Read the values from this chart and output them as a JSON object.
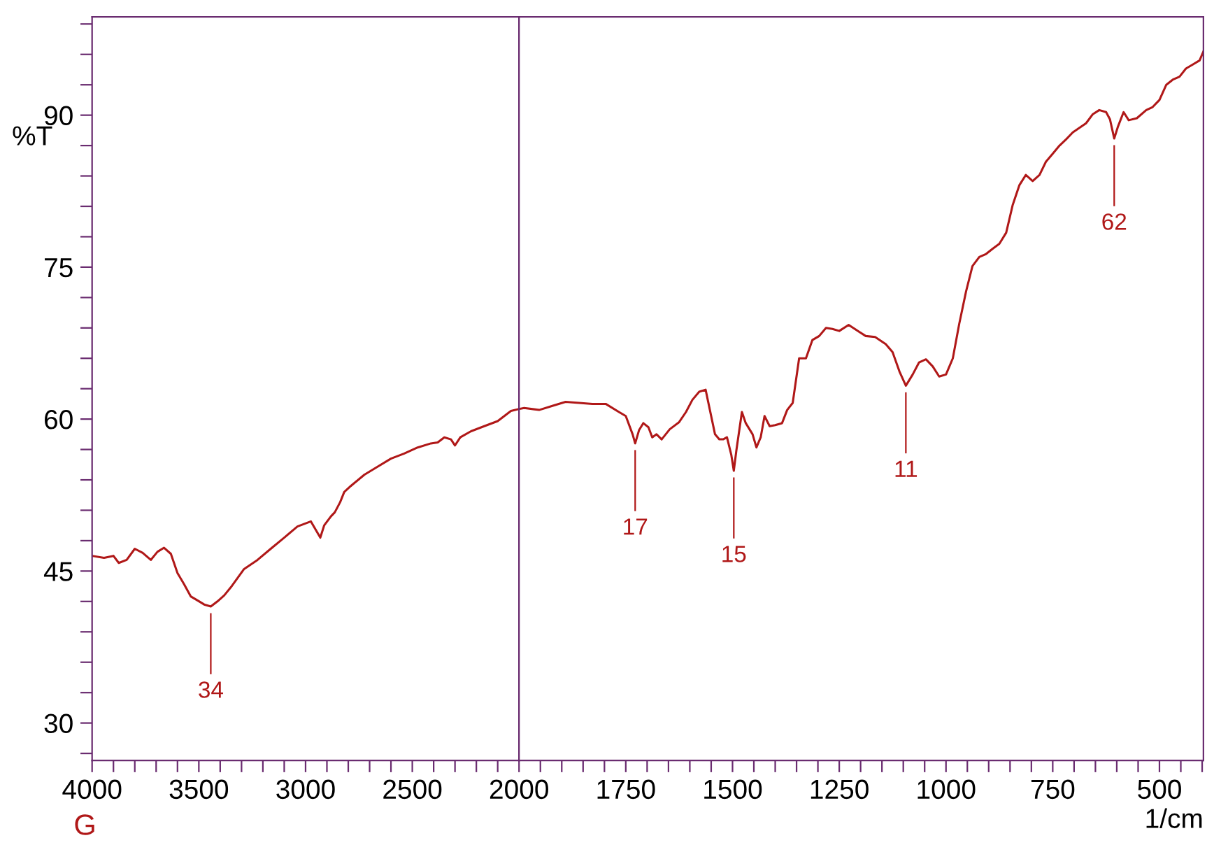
{
  "chart_data": [
    {
      "type": "line",
      "ylabel": "%T",
      "x": [
        4000,
        3944,
        3900,
        3875,
        3838,
        3800,
        3763,
        3725,
        3694,
        3663,
        3631,
        3600,
        3569,
        3538,
        3506,
        3475,
        3444,
        3413,
        3381,
        3350,
        3288,
        3225,
        3163,
        3100,
        3038,
        2975,
        2931,
        2913,
        2881,
        2863,
        2838,
        2819,
        2788,
        2725,
        2663,
        2600,
        2538,
        2475,
        2413,
        2381,
        2350,
        2319,
        2300,
        2275,
        2225,
        2163,
        2100,
        2038,
        2000
      ],
      "series": [
        {
          "color": "#b01818",
          "values": [
            46.5,
            46.3,
            46.5,
            45.8,
            46.1,
            47.2,
            46.8,
            46.1,
            46.9,
            47.3,
            46.7,
            44.8,
            43.7,
            42.5,
            42.1,
            41.7,
            41.5,
            42.0,
            42.6,
            43.4,
            45.2,
            46.1,
            47.2,
            48.3,
            49.4,
            49.9,
            48.3,
            49.5,
            50.4,
            50.8,
            51.8,
            52.8,
            53.4,
            54.5,
            55.3,
            56.1,
            56.6,
            57.2,
            57.6,
            57.7,
            58.2,
            58.0,
            57.4,
            58.2,
            58.8,
            59.3,
            59.8,
            60.8,
            61.0
          ]
        }
      ],
      "xlim": [
        4000,
        2000
      ],
      "ylim": [
        26.3,
        99.7
      ],
      "xticks": [
        4000,
        {
          "value": 3900,
          "label": null
        },
        {
          "value": 3800,
          "label": null
        },
        {
          "value": 3700,
          "label": null
        },
        {
          "value": 3600,
          "label": null
        },
        3500,
        {
          "value": 3400,
          "label": null
        },
        {
          "value": 3300,
          "label": null
        },
        {
          "value": 3200,
          "label": null
        },
        {
          "value": 3100,
          "label": null
        },
        3000,
        {
          "value": 2900,
          "label": null
        },
        {
          "value": 2800,
          "label": null
        },
        {
          "value": 2700,
          "label": null
        },
        {
          "value": 2600,
          "label": null
        },
        2500,
        {
          "value": 2400,
          "label": null
        },
        {
          "value": 2300,
          "label": null
        },
        {
          "value": 2200,
          "label": null
        },
        {
          "value": 2100,
          "label": null
        }
      ],
      "yticks": [
        {
          "value": 27,
          "label": null
        },
        30,
        {
          "value": 33,
          "label": null
        },
        {
          "value": 36,
          "label": null
        },
        {
          "value": 39,
          "label": null
        },
        {
          "value": 42,
          "label": null
        },
        45,
        {
          "value": 48,
          "label": null
        },
        {
          "value": 51,
          "label": null
        },
        {
          "value": 54,
          "label": null
        },
        {
          "value": 57,
          "label": null
        },
        60,
        {
          "value": 63,
          "label": null
        },
        {
          "value": 66,
          "label": null
        },
        {
          "value": 69,
          "label": null
        },
        {
          "value": 72,
          "label": null
        },
        75,
        {
          "value": 78,
          "label": null
        },
        {
          "value": 81,
          "label": null
        },
        {
          "value": 84,
          "label": null
        },
        {
          "value": 87,
          "label": null
        },
        90,
        {
          "value": 93,
          "label": null
        },
        {
          "value": 96,
          "label": null
        },
        {
          "value": 99,
          "label": null
        }
      ],
      "grid": false,
      "marker": "none",
      "line_style": "solid",
      "annotations": [
        {
          "text": "34",
          "x": 3444,
          "y": 41.5
        },
        "G"
      ]
    },
    {
      "type": "line",
      "xlabel": "1/cm",
      "tick_labels": "x",
      "x": [
        2000,
        1988,
        1953,
        1922,
        1891,
        1859,
        1828,
        1797,
        1766,
        1750,
        1734,
        1728,
        1719,
        1709,
        1697,
        1688,
        1678,
        1666,
        1647,
        1625,
        1609,
        1594,
        1578,
        1563,
        1553,
        1541,
        1531,
        1522,
        1513,
        1503,
        1497,
        1491,
        1478,
        1469,
        1453,
        1444,
        1434,
        1425,
        1413,
        1400,
        1384,
        1372,
        1359,
        1344,
        1328,
        1313,
        1297,
        1281,
        1266,
        1250,
        1228,
        1203,
        1188,
        1166,
        1141,
        1125,
        1109,
        1094,
        1078,
        1063,
        1047,
        1031,
        1016,
        1000,
        984,
        969,
        953,
        938,
        922,
        906,
        891,
        875,
        859,
        844,
        828,
        813,
        797,
        781,
        766,
        750,
        734,
        719,
        703,
        672,
        656,
        641,
        625,
        616,
        606,
        597,
        584,
        572,
        553,
        531,
        516,
        500,
        484,
        469,
        453,
        438,
        422,
        406,
        397
      ],
      "series": [
        {
          "color": "#b01818",
          "values": [
            61.0,
            61.1,
            60.9,
            61.3,
            61.7,
            61.6,
            61.5,
            61.5,
            60.7,
            60.3,
            58.5,
            57.6,
            58.9,
            59.6,
            59.2,
            58.2,
            58.5,
            58.0,
            59.0,
            59.7,
            60.7,
            61.9,
            62.7,
            62.9,
            60.9,
            58.5,
            58.0,
            58.0,
            58.2,
            56.5,
            54.9,
            56.9,
            60.7,
            59.6,
            58.5,
            57.2,
            58.2,
            60.3,
            59.3,
            59.4,
            59.6,
            60.9,
            61.6,
            66.0,
            66.0,
            67.8,
            68.2,
            69.0,
            68.9,
            68.7,
            69.3,
            68.6,
            68.2,
            68.1,
            67.4,
            66.6,
            64.7,
            63.3,
            64.4,
            65.6,
            65.9,
            65.2,
            64.2,
            64.4,
            66.0,
            69.4,
            72.6,
            75.1,
            76.0,
            76.3,
            76.8,
            77.3,
            78.4,
            81.1,
            83.1,
            84.1,
            83.5,
            84.1,
            85.4,
            86.2,
            87.0,
            87.6,
            88.3,
            89.2,
            90.1,
            90.5,
            90.3,
            89.6,
            87.7,
            88.9,
            90.3,
            89.5,
            89.7,
            90.5,
            90.8,
            91.5,
            93.0,
            93.5,
            93.8,
            94.6,
            95.0,
            95.4,
            96.3
          ]
        }
      ],
      "xlim": [
        2000,
        397
      ],
      "ylim": [
        26.3,
        99.7
      ],
      "xticks": [
        2000,
        {
          "value": 1950,
          "label": null
        },
        {
          "value": 1900,
          "label": null
        },
        {
          "value": 1850,
          "label": null
        },
        {
          "value": 1800,
          "label": null
        },
        1750,
        {
          "value": 1700,
          "label": null
        },
        {
          "value": 1650,
          "label": null
        },
        {
          "value": 1600,
          "label": null
        },
        {
          "value": 1550,
          "label": null
        },
        1500,
        {
          "value": 1450,
          "label": null
        },
        {
          "value": 1400,
          "label": null
        },
        {
          "value": 1350,
          "label": null
        },
        {
          "value": 1300,
          "label": null
        },
        1250,
        {
          "value": 1200,
          "label": null
        },
        {
          "value": 1150,
          "label": null
        },
        {
          "value": 1100,
          "label": null
        },
        {
          "value": 1050,
          "label": null
        },
        1000,
        {
          "value": 950,
          "label": null
        },
        {
          "value": 900,
          "label": null
        },
        {
          "value": 850,
          "label": null
        },
        {
          "value": 800,
          "label": null
        },
        750,
        {
          "value": 700,
          "label": null
        },
        {
          "value": 650,
          "label": null
        },
        {
          "value": 600,
          "label": null
        },
        {
          "value": 550,
          "label": null
        },
        500,
        {
          "value": 450,
          "label": null
        },
        {
          "value": 400,
          "label": null
        }
      ],
      "grid": false,
      "marker": "none",
      "line_style": "solid",
      "annotations": [
        {
          "text": "17",
          "x": 1728,
          "y": 57.6
        },
        {
          "text": "15",
          "x": 1497,
          "y": 54.9
        },
        {
          "text": "11",
          "x": 1094,
          "y": 63.3
        },
        {
          "text": "62",
          "x": 606,
          "y": 87.7
        }
      ]
    }
  ]
}
